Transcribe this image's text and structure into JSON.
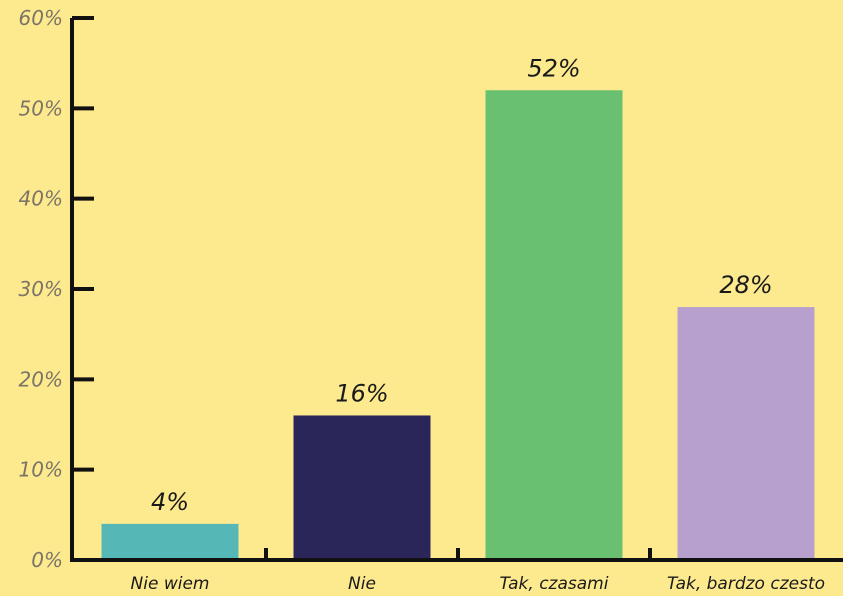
{
  "chart_data": {
    "type": "bar",
    "categories": [
      "Nie wiem",
      "Nie",
      "Tak, czasami",
      "Tak, bardzo czesto"
    ],
    "values": [
      4,
      16,
      52,
      28
    ],
    "value_labels": [
      "4%",
      "16%",
      "52%",
      "28%"
    ],
    "colors": [
      "#56b8b6",
      "#2a265a",
      "#68c070",
      "#b7a0cd"
    ],
    "ylim": [
      0,
      60
    ],
    "y_ticks": [
      0,
      10,
      20,
      30,
      40,
      50,
      60
    ],
    "y_tick_labels": [
      "0%",
      "10%",
      "20%",
      "30%",
      "40%",
      "50%",
      "60%"
    ],
    "grid": false,
    "legend": "none",
    "background": "#fdea8e",
    "axis_color": "#111111"
  }
}
